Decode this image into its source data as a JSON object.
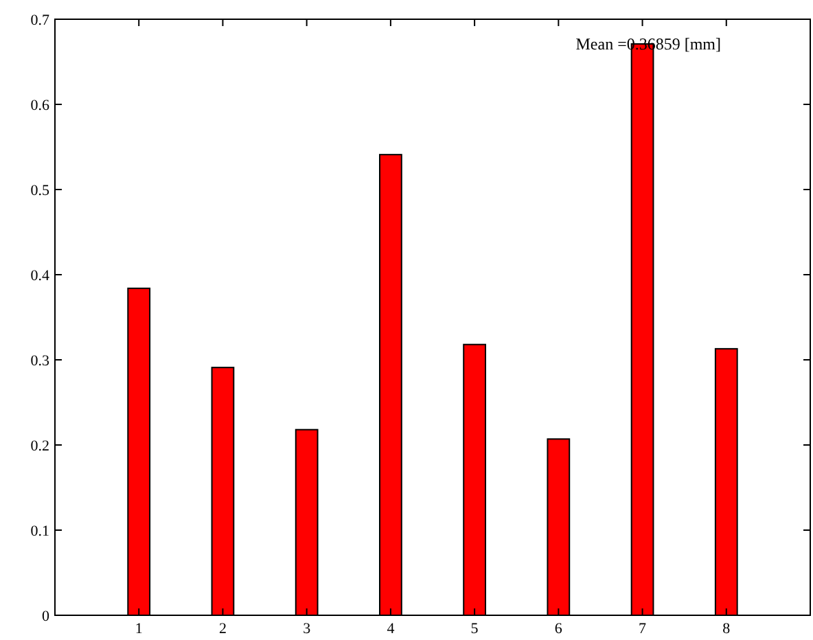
{
  "chart_data": {
    "type": "bar",
    "categories": [
      "1",
      "2",
      "3",
      "4",
      "5",
      "6",
      "7",
      "8"
    ],
    "values": [
      0.384,
      0.291,
      0.218,
      0.541,
      0.318,
      0.207,
      0.671,
      0.313
    ],
    "color": "#ff0000",
    "ylim": [
      0,
      0.7
    ],
    "yticks": [
      0,
      0.1,
      0.2,
      0.3,
      0.4,
      0.5,
      0.6,
      0.7
    ],
    "grid": false,
    "annotations": [
      "Mean =0.36859 [mm]"
    ]
  }
}
